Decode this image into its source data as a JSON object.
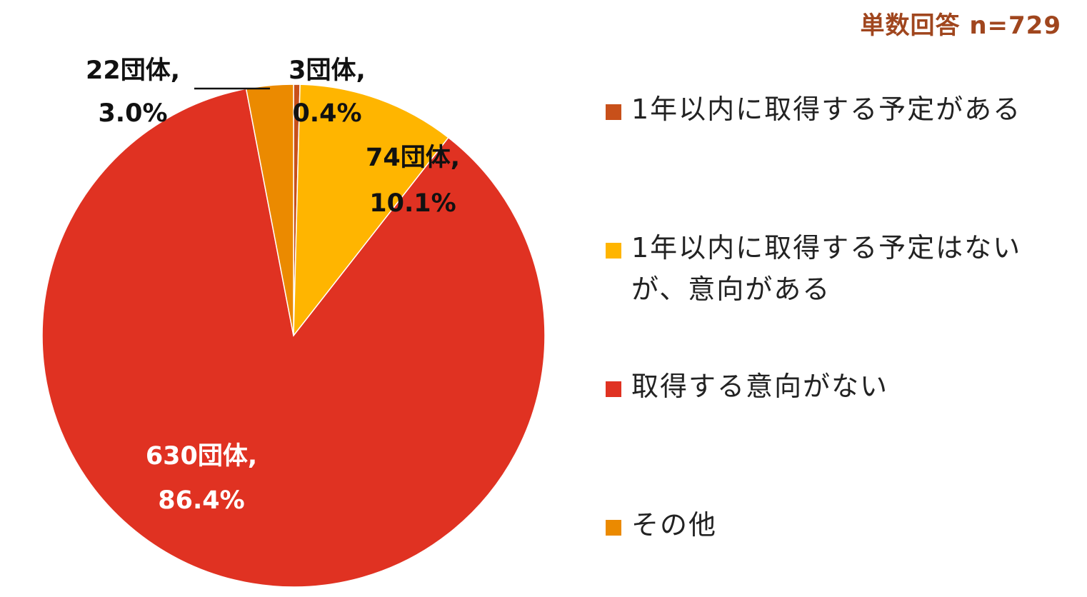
{
  "note": {
    "text": "単数回答 n=729",
    "color": "#A0461E"
  },
  "chart_data": {
    "type": "pie",
    "total": 729,
    "start_angle": "12 o'clock",
    "direction": "clockwise",
    "legend_placement": "right",
    "slices": [
      {
        "name": "1年以内に取得する予定がある",
        "count": 3,
        "percent": 0.4,
        "label_line1": "3団体,",
        "label_line2": "0.4%",
        "color": "#C8501A",
        "label_color": "#111111"
      },
      {
        "name": "1年以内に取得する予定はないが、意向がある",
        "legend_line1": "1年以内に取得する予定はない",
        "legend_line2": "が、意向がある",
        "count": 74,
        "percent": 10.1,
        "label_line1": "74団体,",
        "label_line2": "10.1%",
        "color": "#FFB500",
        "label_color": "#111111"
      },
      {
        "name": "取得する意向がない",
        "count": 630,
        "percent": 86.4,
        "label_line1": "630団体,",
        "label_line2": "86.4%",
        "color": "#E03222",
        "label_color": "#FFFFFF"
      },
      {
        "name": "その他",
        "count": 22,
        "percent": 3.0,
        "label_line1": "22団体,",
        "label_line2": "3.0%",
        "color": "#EB8A00",
        "label_color": "#111111"
      }
    ]
  }
}
